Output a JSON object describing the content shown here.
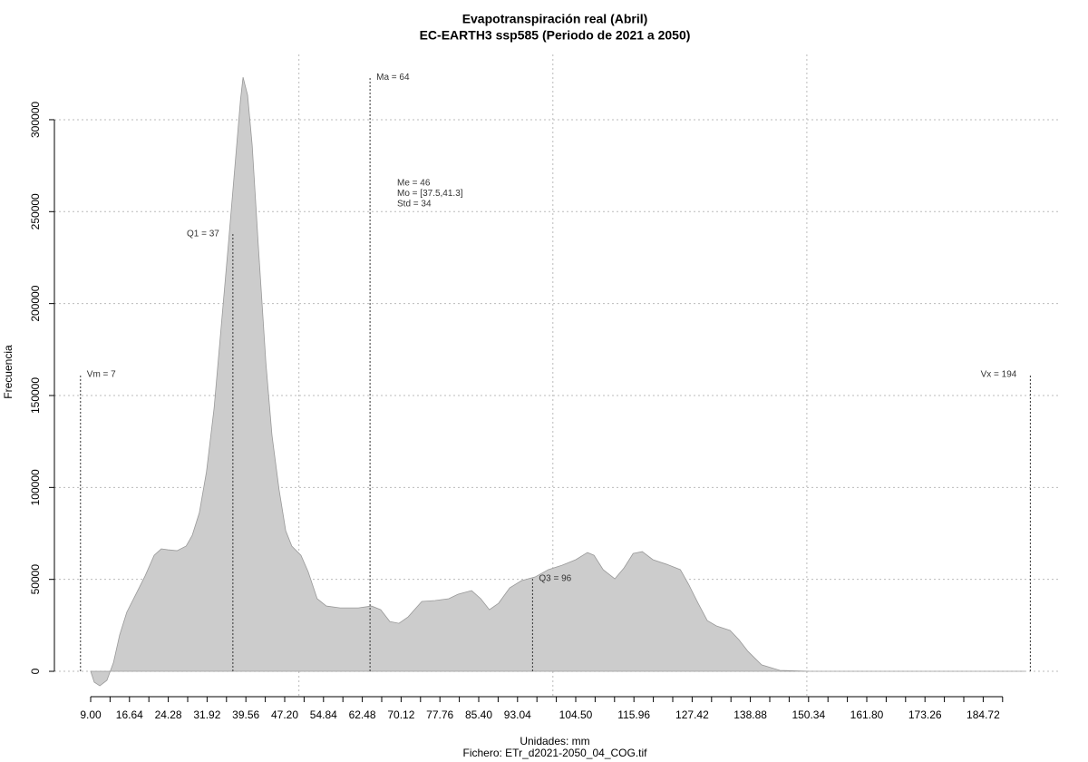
{
  "chart_data": {
    "type": "area",
    "title": "Evapotranspiración real (Abril)",
    "subtitle": "EC-EARTH3 ssp585 (Periodo de 2021 a 2050)",
    "x_label": "Unidades: mm",
    "caption": "Fichero: ETr_d2021-2050_04_COG.tif",
    "y_label": "Frecuencia",
    "color": "#cccccc",
    "line_color": "#999999",
    "grid": true,
    "xlim": [
      1.86,
      200
    ],
    "ylim": [
      -13800,
      335500
    ],
    "yticks": [
      0,
      50000,
      100000,
      150000,
      200000,
      250000,
      300000
    ],
    "xgrid": [
      50,
      100,
      150
    ],
    "xticks": [
      {
        "value": 9,
        "label": "9.00"
      },
      {
        "value": 16.64,
        "label": "16.64"
      },
      {
        "value": 24.28,
        "label": "24.28"
      },
      {
        "value": 31.92,
        "label": "31.92"
      },
      {
        "value": 39.56,
        "label": "39.56"
      },
      {
        "value": 47.2,
        "label": "47.20"
      },
      {
        "value": 54.84,
        "label": "54.84"
      },
      {
        "value": 62.48,
        "label": "62.48"
      },
      {
        "value": 70.12,
        "label": "70.12"
      },
      {
        "value": 77.76,
        "label": "77.76"
      },
      {
        "value": 85.4,
        "label": "85.40"
      },
      {
        "value": 93.04,
        "label": "93.04"
      },
      {
        "value": 104.5,
        "label": "104.50"
      },
      {
        "value": 115.96,
        "label": "115.96"
      },
      {
        "value": 127.42,
        "label": "127.42"
      },
      {
        "value": 138.88,
        "label": "138.88"
      },
      {
        "value": 150.34,
        "label": "150.34"
      },
      {
        "value": 161.8,
        "label": "161.80"
      },
      {
        "value": 173.26,
        "label": "173.26"
      },
      {
        "value": 184.72,
        "label": "184.72"
      }
    ],
    "xminor_ticks": [
      12.82,
      20.46,
      28.1,
      35.74,
      43.38,
      51.02,
      58.66,
      66.3,
      73.94,
      81.58,
      89.22,
      96.86,
      100.68,
      108.32,
      112.14,
      119.78,
      123.6,
      131.24,
      135.06,
      142.7,
      146.52,
      154.16,
      157.98,
      165.62,
      169.44,
      177.08,
      180.9,
      188.54
    ],
    "x": [
      9,
      9.7,
      10.8,
      12.2,
      13.5,
      14.7,
      16.1,
      17.9,
      19.7,
      21.5,
      22.9,
      24.2,
      26.0,
      27.8,
      29.0,
      30.4,
      31.8,
      33.3,
      34.7,
      36.1,
      37.6,
      38.5,
      39.0,
      39.9,
      40.8,
      42.0,
      43.5,
      44.7,
      46.1,
      47.4,
      48.6,
      50.4,
      51.8,
      53.6,
      55.4,
      58.1,
      61.7,
      64.3,
      66.1,
      67.9,
      69.7,
      71.5,
      74.2,
      76.8,
      79.5,
      81.3,
      84.0,
      85.8,
      87.5,
      89.3,
      91.5,
      93.8,
      96.5,
      99.1,
      101.8,
      104.5,
      106.8,
      108.1,
      109.9,
      112.2,
      114.0,
      115.8,
      117.6,
      119.7,
      122.4,
      125.1,
      126.8,
      128.6,
      130.4,
      132.2,
      134.9,
      136.6,
      138.4,
      141.1,
      144.7,
      150.6,
      192.9
    ],
    "values": [
      0,
      -5900,
      -7900,
      -4900,
      4900,
      19700,
      32100,
      41900,
      51800,
      63100,
      66600,
      66100,
      65600,
      68100,
      74000,
      86300,
      108500,
      143100,
      187500,
      231900,
      281200,
      310800,
      323100,
      313300,
      286100,
      231900,
      167700,
      128300,
      98700,
      76500,
      68100,
      63100,
      54300,
      39500,
      35500,
      34500,
      34500,
      35500,
      33500,
      27100,
      26100,
      29600,
      38000,
      38500,
      39500,
      41900,
      43900,
      39500,
      33500,
      37000,
      45400,
      49300,
      51300,
      55300,
      57700,
      60700,
      64600,
      63100,
      55300,
      50300,
      56200,
      64100,
      65100,
      60700,
      58200,
      55300,
      46900,
      37000,
      27600,
      24700,
      22200,
      17300,
      10900,
      3500,
      500,
      0,
      0
    ],
    "markers": [
      {
        "label": "Vm = 7",
        "value": 7,
        "height": 161300,
        "side": "right"
      },
      {
        "label": "Q1 = 37",
        "value": 37,
        "height": 237800,
        "side": "left"
      },
      {
        "label": "Ma = 64",
        "value": 64,
        "height": 323100,
        "side": "right"
      },
      {
        "label": "Q3 = 96",
        "value": 96,
        "height": 50300,
        "side": "right"
      },
      {
        "label": "Vx = 194",
        "value": 194,
        "height": 161300,
        "side": "left"
      }
    ],
    "stats": [
      "Me = 46",
      "Mo = [37.5,41.3]",
      "Std = 34"
    ]
  }
}
